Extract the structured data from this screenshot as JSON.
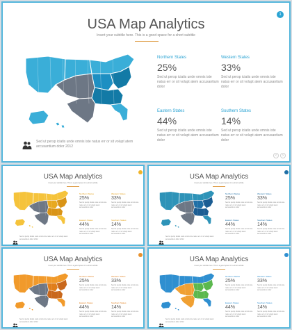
{
  "title": "USA Map Analytics",
  "subtitle": "Insert your subtitle here. This is a good space for a short subtitle",
  "stats": [
    {
      "label": "Northern States",
      "value": "25%",
      "desc": "Sed ut persp iciatis unde omnis iste natus err or sit volupt atem accusantium dolor"
    },
    {
      "label": "Western States",
      "value": "33%",
      "desc": "Sed ut persp iciatis unde omnis iste natus err or sit volupt atem accusantium dolor"
    },
    {
      "label": "Eastern States",
      "value": "44%",
      "desc": "Sed ut persp iciatis unde omnis iste natus err or sit volupt atem accusantium dolor"
    },
    {
      "label": "Southern States",
      "value": "14%",
      "desc": "Sed ut persp iciatis unde omnis iste natus err or sit volupt atem accusantium dolor"
    }
  ],
  "footer": "Sed ut persp iciatis unde omnis iste natus err or sit volupt atem accusantium dolor 2012",
  "badge_label": "1",
  "themes": [
    {
      "name": "blue",
      "light": "#3aaed8",
      "mid": "#1d8fc2",
      "dark": "#137aa6",
      "grey": "#6d7785",
      "label": "#2aa3d3",
      "badge": "#2aa3d3"
    },
    {
      "name": "yellow",
      "light": "#f5c33b",
      "mid": "#e8a920",
      "dark": "#d99417",
      "grey": "#6d7785",
      "label": "#e3a11a",
      "badge": "#f0b429"
    },
    {
      "name": "navy",
      "light": "#2e93b8",
      "mid": "#1f6fa6",
      "dark": "#1b5d93",
      "grey": "#6d7785",
      "label": "#1f6fa6",
      "badge": "#1f6fa6"
    },
    {
      "name": "orange",
      "light": "#f19a2b",
      "mid": "#e07e1b",
      "dark": "#c9681c",
      "grey": "#6d7785",
      "label": "#e07e1b",
      "badge": "#e8912d"
    },
    {
      "name": "multi",
      "light": "#2f8fd0",
      "mid": "#5bb84e",
      "dark": "#f0a032",
      "grey": "#6d7785",
      "label": "#2f8fd0",
      "badge": "#2f8fd0"
    }
  ]
}
